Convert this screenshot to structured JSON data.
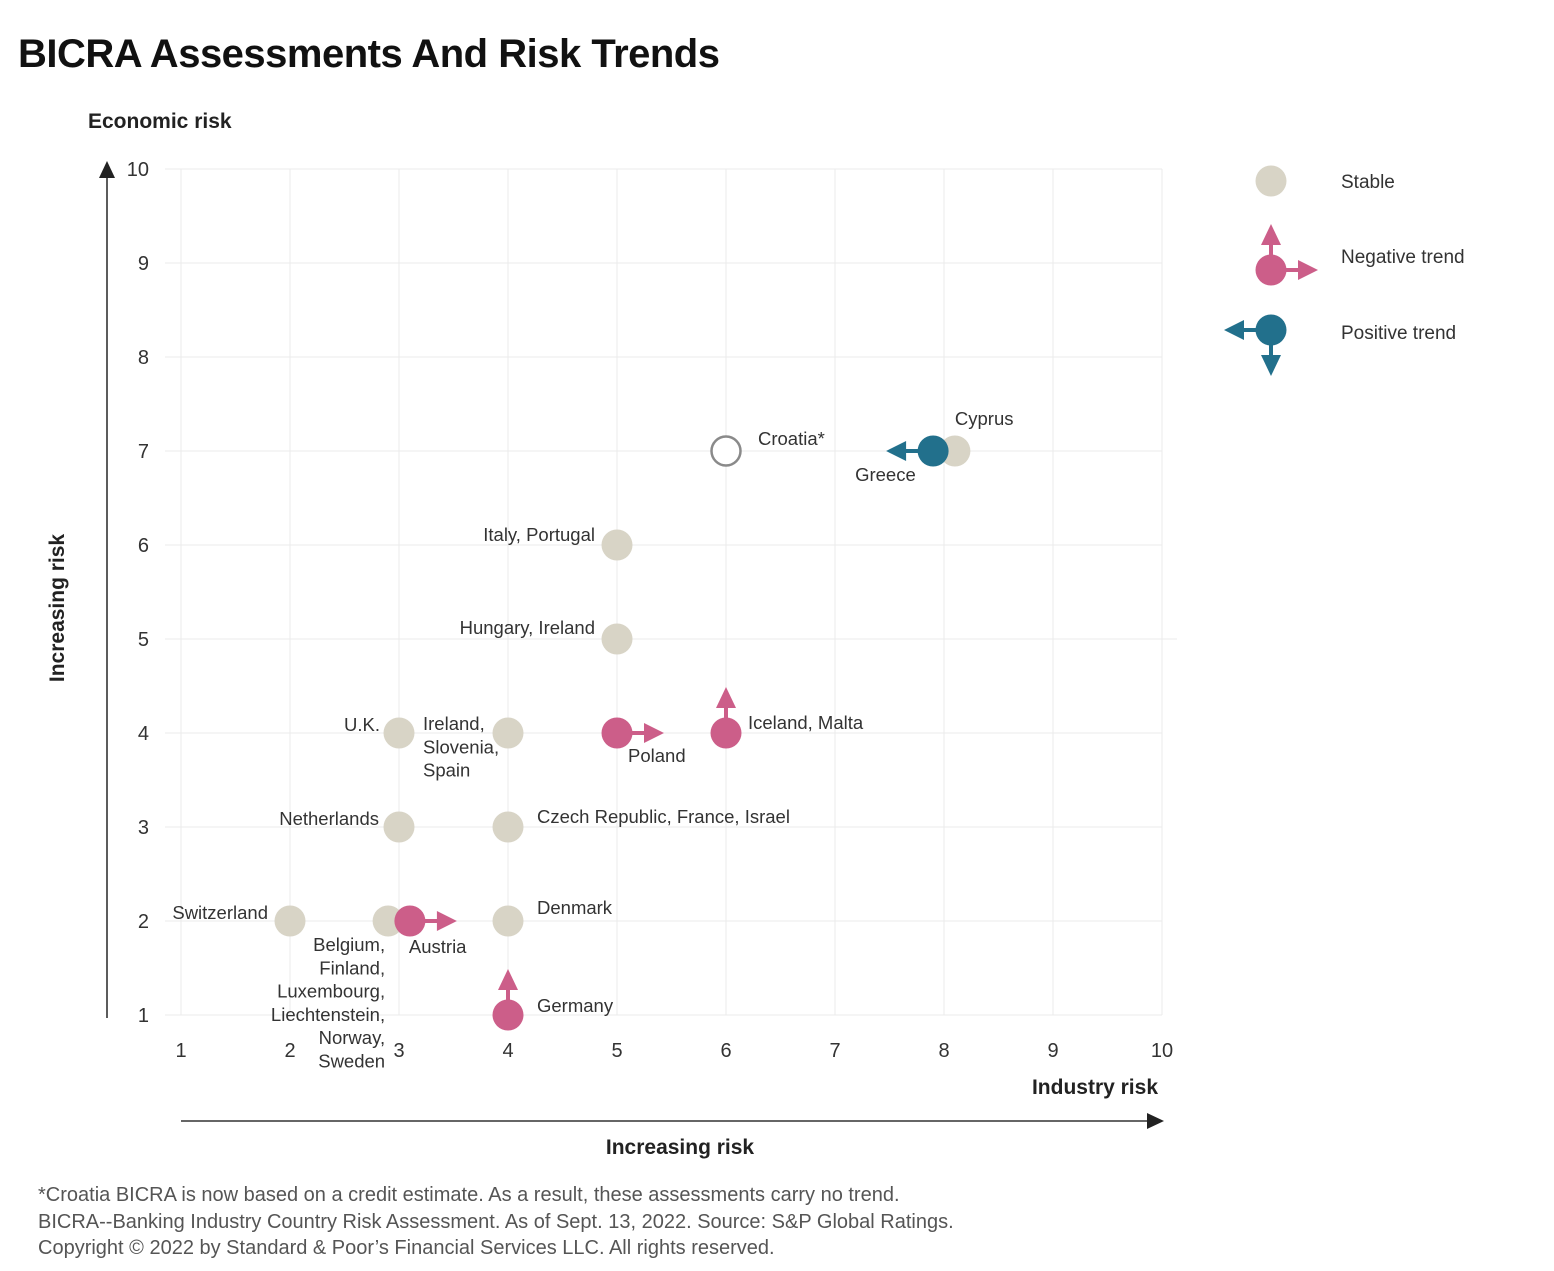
{
  "chart_data": {
    "type": "scatter",
    "title": "BICRA Assessments And Risk Trends",
    "ylabel": "Economic risk",
    "ylabel_side": "Increasing risk",
    "xlabel": "Industry risk",
    "xlabel_bottom": "Increasing risk",
    "xlim": [
      1,
      10
    ],
    "ylim": [
      1,
      10
    ],
    "xticks": [
      1,
      2,
      3,
      4,
      5,
      6,
      7,
      8,
      9,
      10
    ],
    "yticks": [
      1,
      2,
      3,
      4,
      5,
      6,
      7,
      8,
      9,
      10
    ],
    "grid": true,
    "legend_position": "right",
    "colors": {
      "stable": "#d8d4c6",
      "negative": "#cc5e89",
      "positive": "#22708c",
      "no_trend": "#8a8a8a"
    },
    "legend": [
      {
        "key": "stable",
        "label": "Stable"
      },
      {
        "key": "negative",
        "label": "Negative trend"
      },
      {
        "key": "positive",
        "label": "Positive trend"
      }
    ],
    "points": [
      {
        "x": 2,
        "y": 2,
        "status": "stable",
        "label": [
          "Switzerland"
        ]
      },
      {
        "x": 2.9,
        "y": 2,
        "status": "stable",
        "label": [
          "Belgium,",
          "Finland,",
          "Luxembourg,",
          "Liechtenstein,",
          "Norway,",
          "Sweden"
        ]
      },
      {
        "x": 3.1,
        "y": 2,
        "status": "negative",
        "trend": "industry",
        "label": [
          "Austria"
        ]
      },
      {
        "x": 4,
        "y": 2,
        "status": "stable",
        "label": [
          "Denmark"
        ]
      },
      {
        "x": 4,
        "y": 1,
        "status": "negative",
        "trend": "economic",
        "label": [
          "Germany"
        ]
      },
      {
        "x": 3,
        "y": 3,
        "status": "stable",
        "label": [
          "Netherlands"
        ]
      },
      {
        "x": 4,
        "y": 3,
        "status": "stable",
        "label": [
          "Czech Republic, France, Israel"
        ]
      },
      {
        "x": 3,
        "y": 4,
        "status": "stable",
        "label": [
          "U.K."
        ]
      },
      {
        "x": 4,
        "y": 4,
        "status": "stable",
        "label": [
          "Ireland,",
          "Slovenia,",
          "Spain"
        ]
      },
      {
        "x": 5,
        "y": 4,
        "status": "negative",
        "trend": "industry",
        "label": [
          "Poland"
        ]
      },
      {
        "x": 6,
        "y": 4,
        "status": "negative",
        "trend": "economic",
        "label": [
          "Iceland, Malta"
        ]
      },
      {
        "x": 5,
        "y": 5,
        "status": "stable",
        "label": [
          "Hungary, Ireland"
        ]
      },
      {
        "x": 5,
        "y": 6,
        "status": "stable",
        "label": [
          "Italy, Portugal"
        ]
      },
      {
        "x": 6,
        "y": 7,
        "status": "no_trend",
        "label": [
          "Croatia*"
        ]
      },
      {
        "x": 8.1,
        "y": 7,
        "status": "stable",
        "label": [
          "Cyprus"
        ]
      },
      {
        "x": 7.9,
        "y": 7,
        "status": "positive",
        "trend": "industry",
        "label": [
          "Greece"
        ]
      }
    ]
  },
  "footnotes": [
    "*Croatia BICRA is now based on a credit estimate. As a result, these assessments carry no trend.",
    "BICRA--Banking Industry Country Risk Assessment. As of Sept. 13, 2022. Source: S&P Global Ratings.",
    "Copyright © 2022  by Standard & Poor’s Financial Services LLC. All rights reserved."
  ]
}
